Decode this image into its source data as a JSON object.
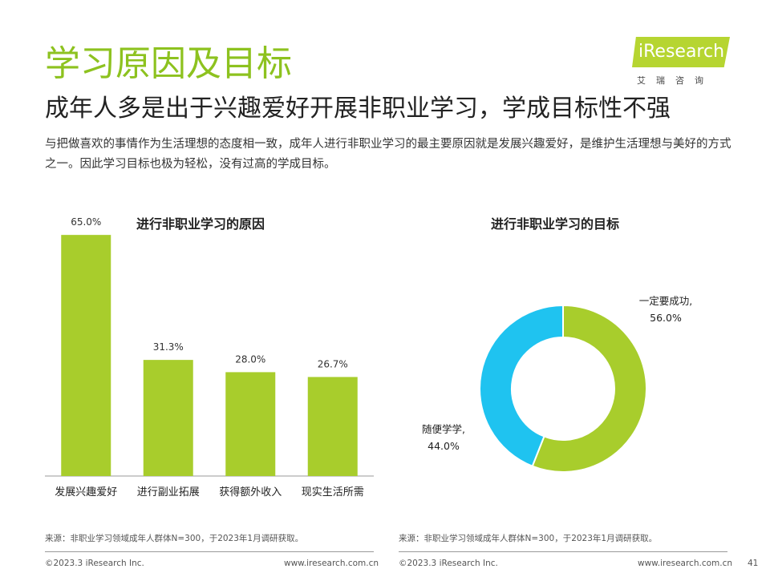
{
  "header": {
    "title": "学习原因及目标",
    "subtitle": "成年人多是出于兴趣爱好开展非职业学习，学成目标性不强",
    "description": "与把做喜欢的事情作为生活理想的态度相一致，成年人进行非职业学习的最主要原因就是发展兴趣爱好，是维护生活理想与美好的方式之一。因此学习目标也极为轻松，没有过高的学成目标。"
  },
  "logo": {
    "text": "iResearch",
    "sub": "艾瑞咨询"
  },
  "colors": {
    "bar": "#a8cd2c",
    "donut_primary": "#a8cd2c",
    "donut_secondary": "#1fc3f0",
    "title": "#8dc21f"
  },
  "chart_data": [
    {
      "type": "bar",
      "title": "进行非职业学习的原因",
      "categories": [
        "发展兴趣爱好",
        "进行副业拓展",
        "获得额外收入",
        "现实生活所需"
      ],
      "values": [
        65.0,
        31.3,
        28.0,
        26.7
      ],
      "value_labels": [
        "65.0%",
        "31.3%",
        "28.0%",
        "26.7%"
      ],
      "ylim": [
        0,
        70
      ],
      "grid": false
    },
    {
      "type": "pie",
      "title": "进行非职业学习的目标",
      "labels": [
        "一定要成功,",
        "随便学学,"
      ],
      "values": [
        56.0,
        44.0
      ],
      "value_labels": [
        "56.0%",
        "44.0%"
      ]
    }
  ],
  "footer": {
    "source_left": "来源：非职业学习领域成年人群体N=300，于2023年1月调研获取。",
    "source_right": "来源：非职业学习领域成年人群体N=300，于2023年1月调研获取。",
    "copyright": "©2023.3 iResearch Inc.",
    "url": "www.iresearch.com.cn",
    "page_number": "41"
  }
}
